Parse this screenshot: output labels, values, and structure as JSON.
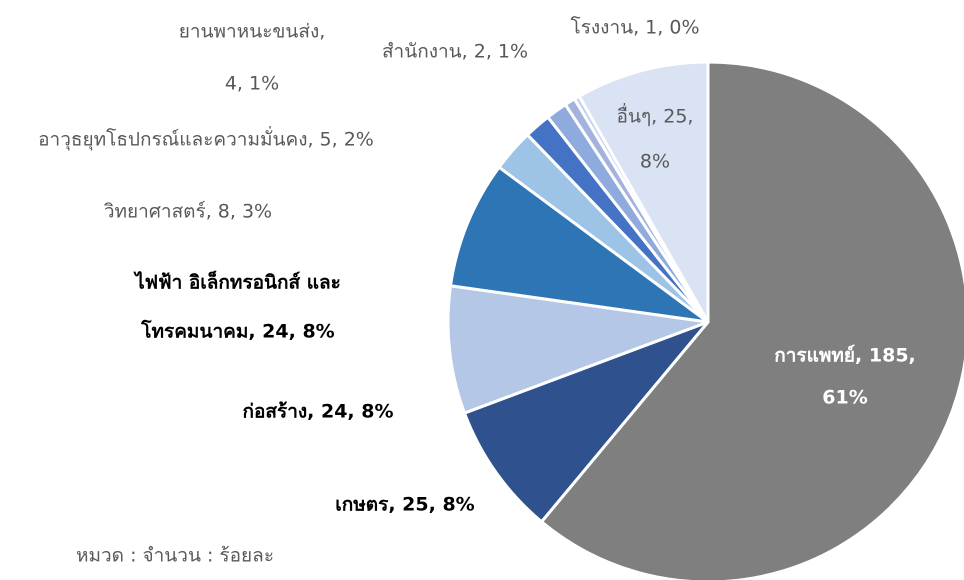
{
  "chart_data": {
    "type": "pie",
    "categories": [
      "การแพทย์",
      "เกษตร",
      "ก่อสร้าง",
      "ไฟฟ้า อิเล็กทรอนิกส์ และ โทรคมนาคม",
      "วิทยาศาสตร์",
      "อาวุธยุทโธปกรณ์และความมั่นคง",
      "ยานพาหนะขนส่ง",
      "สำนักงาน",
      "โรงงาน",
      "อื่นๆ"
    ],
    "values": [
      185,
      25,
      24,
      24,
      8,
      5,
      4,
      2,
      1,
      25
    ],
    "value_labels": [
      [
        "การแพทย์, 185,",
        "61%"
      ],
      [
        "เกษตร, 25, 8%"
      ],
      [
        "ก่อสร้าง, 24, 8%"
      ],
      [
        "ไฟฟ้า อิเล็กทรอนิกส์ และ",
        "โทรคมนาคม, 24, 8%"
      ],
      [
        "วิทยาศาสตร์, 8, 3%"
      ],
      [
        "อาวุธยุทโธปกรณ์และความมั่นคง, 5, 2%"
      ],
      [
        "ยานพาหนะขนส่ง,",
        "4, 1%"
      ],
      [
        "สำนักงาน, 2, 1%"
      ],
      [
        "โรงงาน, 1, 0%"
      ],
      [
        "อื่นๆ, 25,",
        "8%"
      ]
    ],
    "colors": [
      "#7f7f7f",
      "#2f528f",
      "#b4c7e7",
      "#2e75b6",
      "#9dc3e6",
      "#4472c4",
      "#8faadc",
      "#a4b3dd",
      "#c5d0ee",
      "#dae3f3"
    ],
    "note": "หมวด : จำนวน : ร้อยละ"
  }
}
